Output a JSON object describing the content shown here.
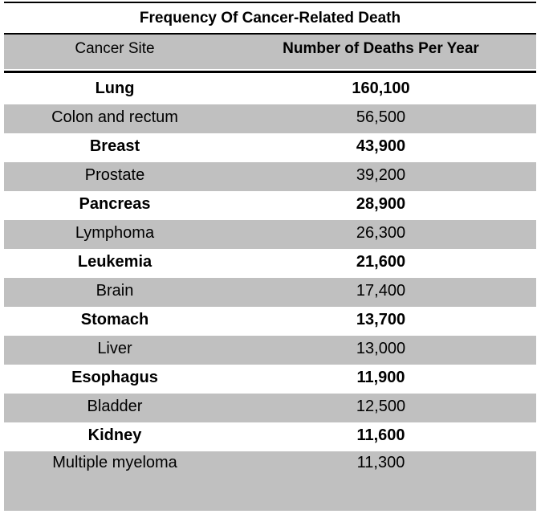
{
  "chart_data": {
    "type": "table",
    "title": "Frequency Of Cancer-Related Death",
    "columns": [
      "Cancer Site",
      "Number of Deaths Per Year"
    ],
    "rows": [
      [
        "Lung",
        "160,100"
      ],
      [
        "Colon and rectum",
        "56,500"
      ],
      [
        "Breast",
        "43,900"
      ],
      [
        "Prostate",
        "39,200"
      ],
      [
        "Pancreas",
        "28,900"
      ],
      [
        "Lymphoma",
        "26,300"
      ],
      [
        "Leukemia",
        "21,600"
      ],
      [
        "Brain",
        "17,400"
      ],
      [
        "Stomach",
        "13,700"
      ],
      [
        "Liver",
        "13,000"
      ],
      [
        "Esophagus",
        "11,900"
      ],
      [
        "Bladder",
        "12,500"
      ],
      [
        "Kidney",
        "11,600"
      ],
      [
        "Multiple myeloma",
        "11,300"
      ]
    ],
    "row_shading": "alternating (even rows white, odd rows gray)",
    "colors": {
      "shade": "#c0c0c0",
      "rule": "#000000",
      "text": "#000000"
    }
  }
}
